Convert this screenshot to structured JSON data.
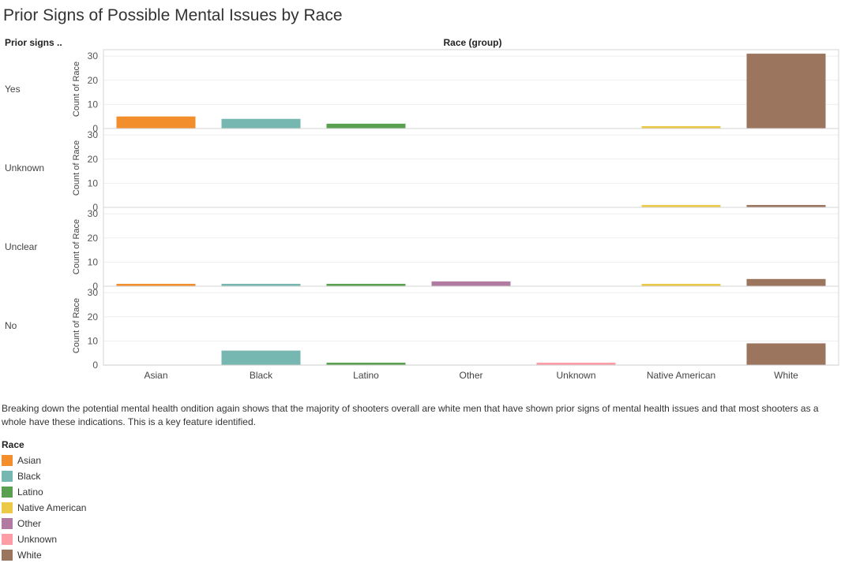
{
  "title": "Prior Signs of Possible Mental Issues by Race",
  "row_header": "Prior signs ..",
  "column_header": "Race (group)",
  "description": "Breaking down the potential mental health ondition again shows that the majority of shooters overall are white men that have shown prior signs of mental health issues and that most shooters as a whole have these indications. This is a key feature identified.",
  "legend": {
    "title": "Race",
    "items": [
      {
        "label": "Asian",
        "color": "#f28e2b"
      },
      {
        "label": "Black",
        "color": "#76b7b2"
      },
      {
        "label": "Latino",
        "color": "#59a14f"
      },
      {
        "label": "Native American",
        "color": "#edc948"
      },
      {
        "label": "Other",
        "color": "#b07aa1"
      },
      {
        "label": "Unknown",
        "color": "#ff9da7"
      },
      {
        "label": "White",
        "color": "#9c755f"
      }
    ]
  },
  "chart_data": {
    "type": "bar",
    "ylabel": "Count of Race",
    "ylim": [
      0,
      32
    ],
    "yticks": [
      0,
      10,
      20,
      30
    ],
    "grid": true,
    "categories": [
      "Asian",
      "Black",
      "Latino",
      "Other",
      "Unknown",
      "Native American",
      "White"
    ],
    "colors": {
      "Asian": "#f28e2b",
      "Black": "#76b7b2",
      "Latino": "#59a14f",
      "Other": "#b07aa1",
      "Unknown": "#ff9da7",
      "Native American": "#edc948",
      "White": "#9c755f"
    },
    "panels": [
      {
        "name": "Yes",
        "values": [
          5,
          4,
          2,
          0,
          0,
          1,
          31
        ]
      },
      {
        "name": "Unknown",
        "values": [
          0,
          0,
          0,
          0,
          0,
          1,
          1
        ]
      },
      {
        "name": "Unclear",
        "values": [
          1,
          1,
          1,
          2,
          0,
          1,
          3
        ]
      },
      {
        "name": "No",
        "values": [
          0,
          6,
          1,
          0,
          1,
          0,
          9
        ]
      }
    ]
  }
}
